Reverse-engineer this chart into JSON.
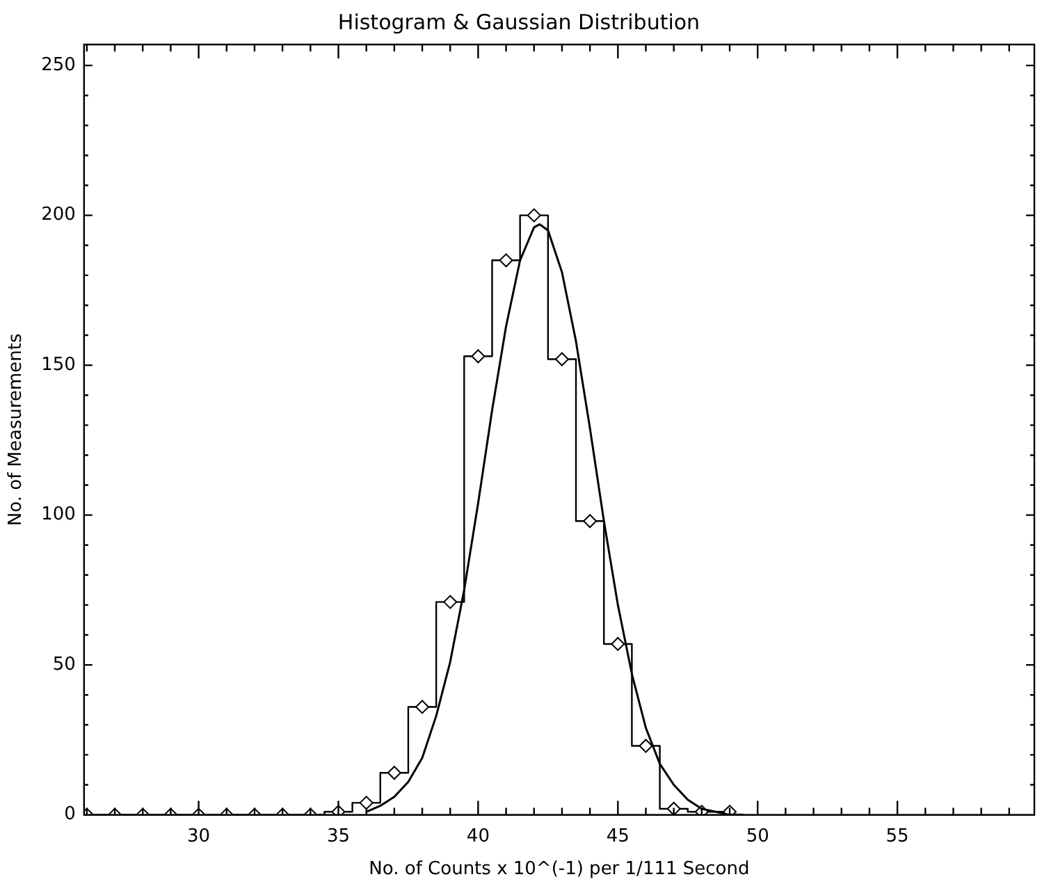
{
  "chart_data": {
    "type": "step",
    "title": "Histogram & Gaussian Distribution",
    "xlabel": "No. of Counts x 10^(-1) per 1/111 Second",
    "ylabel": "No. of Measurements",
    "series": [
      {
        "color": "#000000",
        "marker": "diamond",
        "x": [
          26,
          27,
          28,
          29,
          30,
          31,
          32,
          33,
          34,
          35,
          36,
          37,
          38,
          39,
          40,
          41,
          42,
          43,
          44,
          45,
          46,
          47,
          48,
          49
        ],
        "values": [
          0,
          0,
          0,
          0,
          0,
          0,
          0,
          0,
          0,
          1,
          4,
          14,
          36,
          71,
          153,
          185,
          200,
          152,
          98,
          57,
          23,
          2,
          1,
          1
        ]
      },
      {
        "type": "line",
        "marker": "none",
        "color": "#000000",
        "x": [
          36,
          36.5,
          37,
          37.5,
          38,
          38.5,
          39,
          39.5,
          40,
          40.5,
          41,
          41.5,
          42,
          42.2,
          42.5,
          43,
          43.5,
          44,
          44.5,
          45,
          45.5,
          46,
          46.5,
          47,
          47.5,
          48,
          48.5,
          49,
          49.5
        ],
        "values": [
          1,
          3,
          6,
          11,
          19,
          33,
          51,
          75,
          104,
          135,
          163,
          185,
          196,
          197,
          195,
          181,
          158,
          129,
          98,
          70,
          47,
          29,
          17,
          10,
          5,
          2,
          1,
          0,
          0
        ]
      }
    ],
    "grid": false,
    "legend": false,
    "xlim": [
      25.9,
      59.9
    ],
    "xticks": [
      {
        "value": 26,
        "label": null
      },
      {
        "value": 27,
        "label": null
      },
      {
        "value": 28,
        "label": null
      },
      {
        "value": 29,
        "label": null
      },
      30,
      {
        "value": 31,
        "label": null
      },
      {
        "value": 32,
        "label": null
      },
      {
        "value": 33,
        "label": null
      },
      {
        "value": 34,
        "label": null
      },
      35,
      {
        "value": 36,
        "label": null
      },
      {
        "value": 37,
        "label": null
      },
      {
        "value": 38,
        "label": null
      },
      {
        "value": 39,
        "label": null
      },
      40,
      {
        "value": 41,
        "label": null
      },
      {
        "value": 42,
        "label": null
      },
      {
        "value": 43,
        "label": null
      },
      {
        "value": 44,
        "label": null
      },
      45,
      {
        "value": 46,
        "label": null
      },
      {
        "value": 47,
        "label": null
      },
      {
        "value": 48,
        "label": null
      },
      {
        "value": 49,
        "label": null
      },
      50,
      {
        "value": 51,
        "label": null
      },
      {
        "value": 52,
        "label": null
      },
      {
        "value": 53,
        "label": null
      },
      {
        "value": 54,
        "label": null
      },
      55,
      {
        "value": 56,
        "label": null
      },
      {
        "value": 57,
        "label": null
      },
      {
        "value": 58,
        "label": null
      },
      {
        "value": 59,
        "label": null
      }
    ],
    "ylim": [
      0,
      257
    ],
    "yticks": [
      0,
      {
        "value": 10,
        "label": null
      },
      {
        "value": 20,
        "label": null
      },
      {
        "value": 30,
        "label": null
      },
      {
        "value": 40,
        "label": null
      },
      50,
      {
        "value": 60,
        "label": null
      },
      {
        "value": 70,
        "label": null
      },
      {
        "value": 80,
        "label": null
      },
      {
        "value": 90,
        "label": null
      },
      100,
      {
        "value": 110,
        "label": null
      },
      {
        "value": 120,
        "label": null
      },
      {
        "value": 130,
        "label": null
      },
      {
        "value": 140,
        "label": null
      },
      150,
      {
        "value": 160,
        "label": null
      },
      {
        "value": 170,
        "label": null
      },
      {
        "value": 180,
        "label": null
      },
      {
        "value": 190,
        "label": null
      },
      200,
      {
        "value": 210,
        "label": null
      },
      {
        "value": 220,
        "label": null
      },
      {
        "value": 230,
        "label": null
      },
      {
        "value": 240,
        "label": null
      },
      250
    ]
  }
}
